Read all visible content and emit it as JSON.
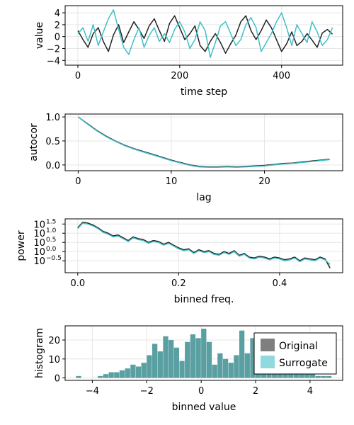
{
  "colors": {
    "original": "#222222",
    "surrogate": "#3fbfc8",
    "original_hist": "#7f7f7f",
    "surrogate_hist": "#8fd9df",
    "overlap_hist": "#5a9fa2",
    "grid": "#e6e6e6",
    "frame": "#000000"
  },
  "chart_data": [
    {
      "type": "line",
      "xlabel": "time step",
      "ylabel": "value",
      "xlim": [
        -25,
        520
      ],
      "ylim": [
        -4.8,
        5.2
      ],
      "xticks": [
        0,
        200,
        400
      ],
      "yticks": [
        -4,
        -2,
        0,
        2,
        4
      ],
      "grid": true,
      "series": [
        {
          "name": "Original",
          "x": [
            0,
            10,
            20,
            30,
            40,
            50,
            60,
            70,
            80,
            90,
            100,
            110,
            120,
            130,
            140,
            150,
            160,
            170,
            180,
            190,
            200,
            210,
            220,
            230,
            240,
            250,
            260,
            270,
            280,
            290,
            300,
            310,
            320,
            330,
            340,
            350,
            360,
            370,
            380,
            390,
            400,
            410,
            420,
            430,
            440,
            450,
            460,
            470,
            480,
            490,
            500
          ],
          "y": [
            1.0,
            -0.5,
            -1.8,
            0.5,
            1.5,
            -0.8,
            -2.5,
            0.3,
            2.0,
            -1.0,
            0.8,
            2.5,
            1.2,
            -0.3,
            1.8,
            3.0,
            1.0,
            -0.8,
            2.2,
            3.5,
            1.5,
            -0.5,
            0.5,
            1.8,
            -1.5,
            -2.5,
            -0.8,
            0.5,
            -1.0,
            -2.8,
            -1.2,
            0.2,
            2.5,
            3.5,
            1.0,
            -0.5,
            1.0,
            2.8,
            1.5,
            -0.5,
            -2.5,
            -1.2,
            0.8,
            -1.5,
            -0.8,
            0.5,
            -0.6,
            -1.8,
            0.6,
            1.2,
            0.4
          ]
        },
        {
          "name": "Surrogate",
          "x": [
            0,
            10,
            20,
            30,
            40,
            50,
            60,
            70,
            80,
            90,
            100,
            110,
            120,
            130,
            140,
            150,
            160,
            170,
            180,
            190,
            200,
            210,
            220,
            230,
            240,
            250,
            260,
            270,
            280,
            290,
            300,
            310,
            320,
            330,
            340,
            350,
            360,
            370,
            380,
            390,
            400,
            410,
            420,
            430,
            440,
            450,
            460,
            470,
            480,
            490,
            500
          ],
          "y": [
            0.5,
            1.5,
            -0.8,
            2.0,
            -1.5,
            0.8,
            3.0,
            4.5,
            1.2,
            -1.8,
            -3.0,
            -0.5,
            1.5,
            -1.8,
            0.2,
            1.5,
            -0.8,
            0.5,
            -1.0,
            1.2,
            2.5,
            0.8,
            -2.0,
            -0.5,
            2.5,
            1.0,
            -3.5,
            -1.0,
            1.8,
            2.5,
            0.5,
            -1.5,
            -0.5,
            2.0,
            3.2,
            1.5,
            -2.5,
            -1.0,
            0.5,
            2.5,
            4.0,
            1.5,
            -1.5,
            2.0,
            0.5,
            -1.0,
            2.5,
            0.8,
            -1.5,
            -0.5,
            1.5
          ]
        }
      ]
    },
    {
      "type": "line",
      "xlabel": "lag",
      "ylabel": "autocor",
      "xlim": [
        -1.4,
        28.4
      ],
      "ylim": [
        -0.12,
        1.06
      ],
      "xticks": [
        0,
        10,
        20
      ],
      "yticks": [
        0.0,
        0.5,
        1.0
      ],
      "grid": true,
      "series": [
        {
          "name": "Original",
          "x": [
            0,
            1,
            2,
            3,
            4,
            5,
            6,
            7,
            8,
            9,
            10,
            11,
            12,
            13,
            14,
            15,
            16,
            17,
            18,
            19,
            20,
            21,
            22,
            23,
            24,
            25,
            26,
            27
          ],
          "y": [
            1.0,
            0.86,
            0.72,
            0.6,
            0.5,
            0.41,
            0.34,
            0.28,
            0.22,
            0.16,
            0.1,
            0.05,
            0.0,
            -0.03,
            -0.04,
            -0.04,
            -0.03,
            -0.04,
            -0.03,
            -0.02,
            -0.01,
            0.01,
            0.03,
            0.04,
            0.06,
            0.08,
            0.1,
            0.12
          ]
        },
        {
          "name": "Surrogate",
          "x": [
            0,
            1,
            2,
            3,
            4,
            5,
            6,
            7,
            8,
            9,
            10,
            11,
            12,
            13,
            14,
            15,
            16,
            17,
            18,
            19,
            20,
            21,
            22,
            23,
            24,
            25,
            26,
            27
          ],
          "y": [
            1.0,
            0.85,
            0.71,
            0.59,
            0.49,
            0.4,
            0.33,
            0.27,
            0.21,
            0.15,
            0.09,
            0.04,
            -0.01,
            -0.04,
            -0.05,
            -0.05,
            -0.04,
            -0.05,
            -0.04,
            -0.03,
            -0.02,
            0.0,
            0.02,
            0.03,
            0.05,
            0.07,
            0.09,
            0.11
          ]
        }
      ]
    },
    {
      "type": "line",
      "xlabel": "binned freq.",
      "ylabel": "power",
      "yscale": "log10",
      "xlim": [
        -0.025,
        0.525
      ],
      "ylim_log10": [
        -1.15,
        1.78
      ],
      "xticks": [
        0.0,
        0.2,
        0.4
      ],
      "yticks_log10": [
        -0.5,
        0.0,
        0.5,
        1.0,
        1.5
      ],
      "ytick_labels": [
        "10",
        "10",
        "10",
        "10",
        "10"
      ],
      "ytick_exponents": [
        "−0.5",
        "0.0",
        "0.5",
        "1.0",
        "1.5"
      ],
      "grid": true,
      "series": [
        {
          "name": "Original",
          "x": [
            0.0,
            0.01,
            0.02,
            0.03,
            0.04,
            0.05,
            0.06,
            0.07,
            0.08,
            0.09,
            0.1,
            0.11,
            0.12,
            0.13,
            0.14,
            0.15,
            0.16,
            0.17,
            0.18,
            0.19,
            0.2,
            0.21,
            0.22,
            0.23,
            0.24,
            0.25,
            0.26,
            0.27,
            0.28,
            0.29,
            0.3,
            0.31,
            0.32,
            0.33,
            0.34,
            0.35,
            0.36,
            0.37,
            0.38,
            0.39,
            0.4,
            0.41,
            0.42,
            0.43,
            0.44,
            0.45,
            0.46,
            0.47,
            0.48,
            0.49,
            0.5
          ],
          "y": [
            1.3,
            1.6,
            1.55,
            1.45,
            1.3,
            1.1,
            1.0,
            0.85,
            0.9,
            0.75,
            0.6,
            0.8,
            0.7,
            0.65,
            0.5,
            0.6,
            0.55,
            0.4,
            0.5,
            0.35,
            0.2,
            0.1,
            0.15,
            -0.05,
            0.1,
            0.0,
            0.05,
            -0.1,
            -0.15,
            0.0,
            -0.1,
            0.05,
            -0.2,
            -0.1,
            -0.3,
            -0.35,
            -0.25,
            -0.3,
            -0.4,
            -0.3,
            -0.35,
            -0.45,
            -0.4,
            -0.3,
            -0.5,
            -0.35,
            -0.4,
            -0.45,
            -0.3,
            -0.4,
            -0.9
          ]
        },
        {
          "name": "Surrogate",
          "x": [
            0.0,
            0.01,
            0.02,
            0.03,
            0.04,
            0.05,
            0.06,
            0.07,
            0.08,
            0.09,
            0.1,
            0.11,
            0.12,
            0.13,
            0.14,
            0.15,
            0.16,
            0.17,
            0.18,
            0.19,
            0.2,
            0.21,
            0.22,
            0.23,
            0.24,
            0.25,
            0.26,
            0.27,
            0.28,
            0.29,
            0.3,
            0.31,
            0.32,
            0.33,
            0.34,
            0.35,
            0.36,
            0.37,
            0.38,
            0.39,
            0.4,
            0.41,
            0.42,
            0.43,
            0.44,
            0.45,
            0.46,
            0.47,
            0.48,
            0.49,
            0.5
          ],
          "y": [
            1.25,
            1.55,
            1.5,
            1.4,
            1.25,
            1.05,
            0.95,
            0.8,
            0.85,
            0.7,
            0.55,
            0.75,
            0.65,
            0.6,
            0.45,
            0.55,
            0.5,
            0.35,
            0.45,
            0.3,
            0.15,
            0.05,
            0.1,
            -0.1,
            0.05,
            -0.05,
            0.0,
            -0.15,
            -0.2,
            -0.05,
            -0.15,
            0.0,
            -0.25,
            -0.15,
            -0.35,
            -0.4,
            -0.3,
            -0.35,
            -0.45,
            -0.35,
            -0.4,
            -0.5,
            -0.45,
            -0.35,
            -0.55,
            -0.4,
            -0.45,
            -0.5,
            -0.35,
            -0.45,
            -0.7
          ]
        }
      ]
    },
    {
      "type": "bar",
      "xlabel": "binned value",
      "ylabel": "histogram",
      "xlim": [
        -5.0,
        5.2
      ],
      "ylim": [
        -1.3,
        27.5
      ],
      "xticks": [
        -4,
        -2,
        0,
        2,
        4
      ],
      "yticks": [
        0,
        10,
        20
      ],
      "grid": true,
      "legend": "top-right",
      "bin_width": 0.2,
      "bin_centers": [
        -4.5,
        -4.3,
        -4.1,
        -3.9,
        -3.7,
        -3.5,
        -3.3,
        -3.1,
        -2.9,
        -2.7,
        -2.5,
        -2.3,
        -2.1,
        -1.9,
        -1.7,
        -1.5,
        -1.3,
        -1.1,
        -0.9,
        -0.7,
        -0.5,
        -0.3,
        -0.1,
        0.1,
        0.3,
        0.5,
        0.7,
        0.9,
        1.1,
        1.3,
        1.5,
        1.7,
        1.9,
        2.1,
        2.3,
        2.5,
        2.7,
        2.9,
        3.1,
        3.3,
        3.5,
        3.7,
        3.9,
        4.1,
        4.3,
        4.5,
        4.7
      ],
      "series": [
        {
          "name": "Original",
          "values": [
            1,
            0,
            0,
            0,
            1,
            2,
            3,
            3,
            4,
            5,
            7,
            6,
            8,
            12,
            18,
            14,
            22,
            20,
            16,
            9,
            19,
            23,
            21,
            26,
            19,
            7,
            13,
            10,
            8,
            12,
            25,
            13,
            21,
            14,
            9,
            12,
            5,
            8,
            6,
            5,
            4,
            4,
            3,
            2,
            1,
            1,
            1
          ]
        },
        {
          "name": "Surrogate",
          "values": [
            1,
            0,
            0,
            0,
            1,
            2,
            3,
            3,
            4,
            5,
            7,
            6,
            8,
            12,
            18,
            14,
            22,
            20,
            16,
            9,
            19,
            23,
            21,
            26,
            19,
            7,
            13,
            10,
            8,
            12,
            25,
            13,
            21,
            14,
            9,
            12,
            5,
            8,
            6,
            5,
            4,
            4,
            3,
            2,
            1,
            1,
            1
          ]
        }
      ]
    }
  ]
}
